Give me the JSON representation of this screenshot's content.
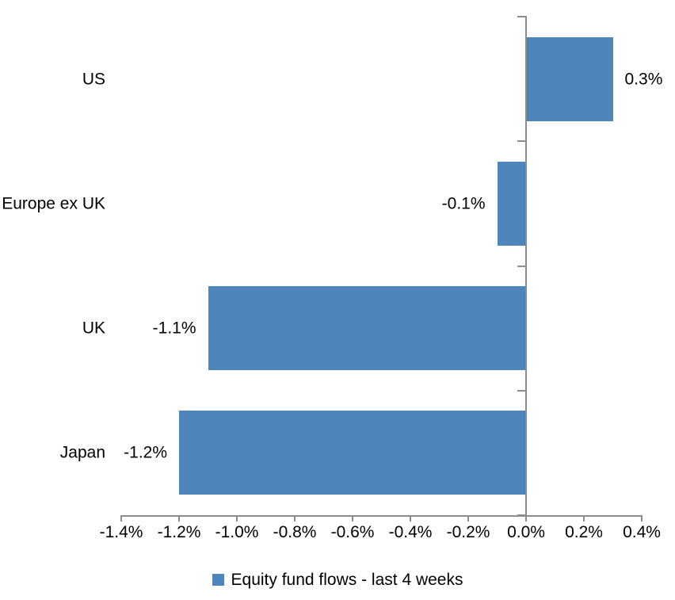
{
  "chart_data": {
    "type": "bar",
    "orientation": "horizontal",
    "categories": [
      "US",
      "Europe ex UK",
      "UK",
      "Japan"
    ],
    "values": [
      0.3,
      -0.1,
      -1.1,
      -1.2
    ],
    "data_labels": [
      "0.3%",
      "-0.1%",
      "-1.1%",
      "-1.2%"
    ],
    "x_axis": {
      "min": -1.4,
      "max": 0.4,
      "step": 0.2,
      "tick_labels": [
        "-1.4%",
        "-1.2%",
        "-1.0%",
        "-0.8%",
        "-0.6%",
        "-0.4%",
        "-0.2%",
        "0.0%",
        "0.2%",
        "0.4%"
      ]
    },
    "grid": "off",
    "legend": {
      "position": "bottom",
      "items": [
        {
          "label": "Equity fund flows - last 4 weeks",
          "color": "#4E86BC"
        }
      ]
    },
    "colors": {
      "bar": "#4E86BC",
      "axis": "#8C8C8C",
      "text": "#000000",
      "background": "#FFFFFF"
    }
  }
}
